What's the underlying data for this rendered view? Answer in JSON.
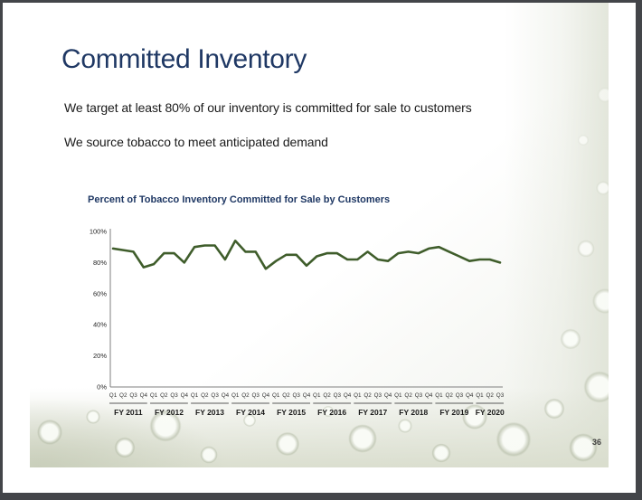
{
  "slide": {
    "title": "Committed Inventory",
    "body_lines": [
      "We target at least 80% of our inventory is committed for sale to customers",
      "We source tobacco to meet anticipated demand"
    ],
    "page_number": "36"
  },
  "colors": {
    "title_text": "#1f3864",
    "body_text": "#1a1a1a",
    "chart_line": "#3f5d2b",
    "axis_line": "#7f7f7f",
    "bracket_line": "#595959"
  },
  "chart_data": {
    "type": "line",
    "title": "Percent of Tobacco Inventory Committed for Sale by Customers",
    "ylabel": "",
    "xlabel": "",
    "ylim": [
      0,
      100
    ],
    "grid": false,
    "legend": false,
    "y_ticks": [
      {
        "value": 100,
        "label": "100%"
      },
      {
        "value": 80,
        "label": "80%"
      },
      {
        "value": 60,
        "label": "60%"
      },
      {
        "value": 40,
        "label": "40%"
      },
      {
        "value": 20,
        "label": "20%"
      },
      {
        "value": 0,
        "label": "0%"
      }
    ],
    "quarter_labels": [
      "Q1",
      "Q2",
      "Q3",
      "Q4",
      "Q1",
      "Q2",
      "Q3",
      "Q4",
      "Q1",
      "Q2",
      "Q3",
      "Q4",
      "Q1",
      "Q2",
      "Q3",
      "Q4",
      "Q1",
      "Q2",
      "Q3",
      "Q4",
      "Q1",
      "Q2",
      "Q3",
      "Q4",
      "Q1",
      "Q2",
      "Q3",
      "Q4",
      "Q1",
      "Q2",
      "Q3",
      "Q4",
      "Q1",
      "Q2",
      "Q3",
      "Q4",
      "Q1",
      "Q2",
      "Q3"
    ],
    "fy_groups": [
      {
        "label": "FY 2011",
        "count": 4
      },
      {
        "label": "FY 2012",
        "count": 4
      },
      {
        "label": "FY 2013",
        "count": 4
      },
      {
        "label": "FY 2014",
        "count": 4
      },
      {
        "label": "FY 2015",
        "count": 4
      },
      {
        "label": "FY 2016",
        "count": 4
      },
      {
        "label": "FY 2017",
        "count": 4
      },
      {
        "label": "FY 2018",
        "count": 4
      },
      {
        "label": "FY 2019",
        "count": 4
      },
      {
        "label": "FY 2020",
        "count": 3
      }
    ],
    "values": [
      89,
      88,
      87,
      77,
      79,
      86,
      86,
      80,
      90,
      91,
      91,
      82,
      94,
      87,
      87,
      76,
      81,
      85,
      85,
      78,
      84,
      86,
      86,
      82,
      82,
      87,
      82,
      81,
      86,
      87,
      86,
      89,
      90,
      87,
      84,
      81,
      82,
      82,
      80
    ]
  }
}
